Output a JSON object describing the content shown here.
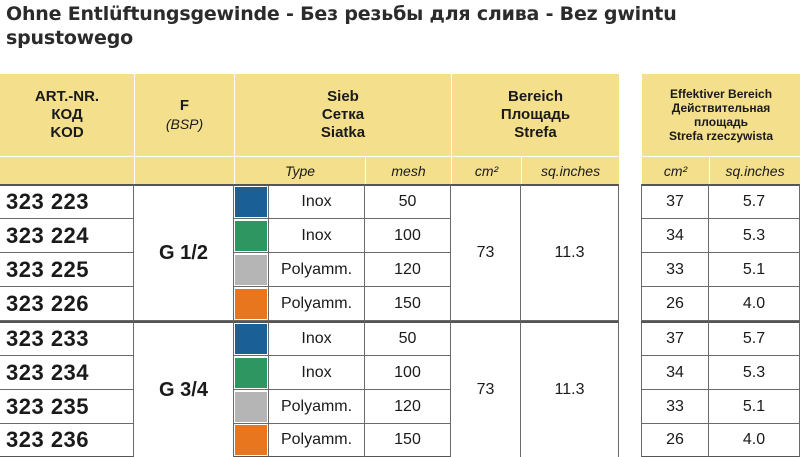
{
  "title": "Ohne Entlüftungsgewinde - Без резьбы для слива - Bez gwintu spustowego",
  "headers": {
    "art": [
      "ART.-NR.",
      "КОД",
      "KOD"
    ],
    "f": "F",
    "f_sub": "(BSP)",
    "sieb": [
      "Sieb",
      "Сетка",
      "Siatka"
    ],
    "bereich": [
      "Bereich",
      "Площадь",
      "Strefa"
    ],
    "effektiv": [
      "Effektiver Bereich",
      "Действительная",
      "площадь",
      "Strefa rzeczywista"
    ],
    "sub": {
      "type": "Type",
      "mesh": "mesh",
      "cm2": "cm²",
      "sq": "sq.inches",
      "cm2_eff": "cm²",
      "sq_eff": "sq.inches"
    }
  },
  "colors": {
    "header_bg": "#f3df8c",
    "swatch_inox_50": "#1b5f97",
    "swatch_inox_100": "#2e9660",
    "swatch_poly_120": "#b5b5b5",
    "swatch_poly_150": "#e8761f"
  },
  "groups": [
    {
      "thread": "G 1/2",
      "bereich_cm2": "73",
      "bereich_sq": "11.3",
      "rows": [
        {
          "art": "323 223",
          "swatch": "#1b5f97",
          "type": "Inox",
          "mesh": "50",
          "eff_cm2": "37",
          "eff_sq": "5.7"
        },
        {
          "art": "323 224",
          "swatch": "#2e9660",
          "type": "Inox",
          "mesh": "100",
          "eff_cm2": "34",
          "eff_sq": "5.3"
        },
        {
          "art": "323 225",
          "swatch": "#b5b5b5",
          "type": "Polyamm.",
          "mesh": "120",
          "eff_cm2": "33",
          "eff_sq": "5.1"
        },
        {
          "art": "323 226",
          "swatch": "#e8761f",
          "type": "Polyamm.",
          "mesh": "150",
          "eff_cm2": "26",
          "eff_sq": "4.0"
        }
      ]
    },
    {
      "thread": "G 3/4",
      "bereich_cm2": "73",
      "bereich_sq": "11.3",
      "rows": [
        {
          "art": "323 233",
          "swatch": "#1b5f97",
          "type": "Inox",
          "mesh": "50",
          "eff_cm2": "37",
          "eff_sq": "5.7"
        },
        {
          "art": "323 234",
          "swatch": "#2e9660",
          "type": "Inox",
          "mesh": "100",
          "eff_cm2": "34",
          "eff_sq": "5.3"
        },
        {
          "art": "323 235",
          "swatch": "#b5b5b5",
          "type": "Polyamm.",
          "mesh": "120",
          "eff_cm2": "33",
          "eff_sq": "5.1"
        },
        {
          "art": "323 236",
          "swatch": "#e8761f",
          "type": "Polyamm.",
          "mesh": "150",
          "eff_cm2": "26",
          "eff_sq": "4.0"
        }
      ]
    }
  ]
}
